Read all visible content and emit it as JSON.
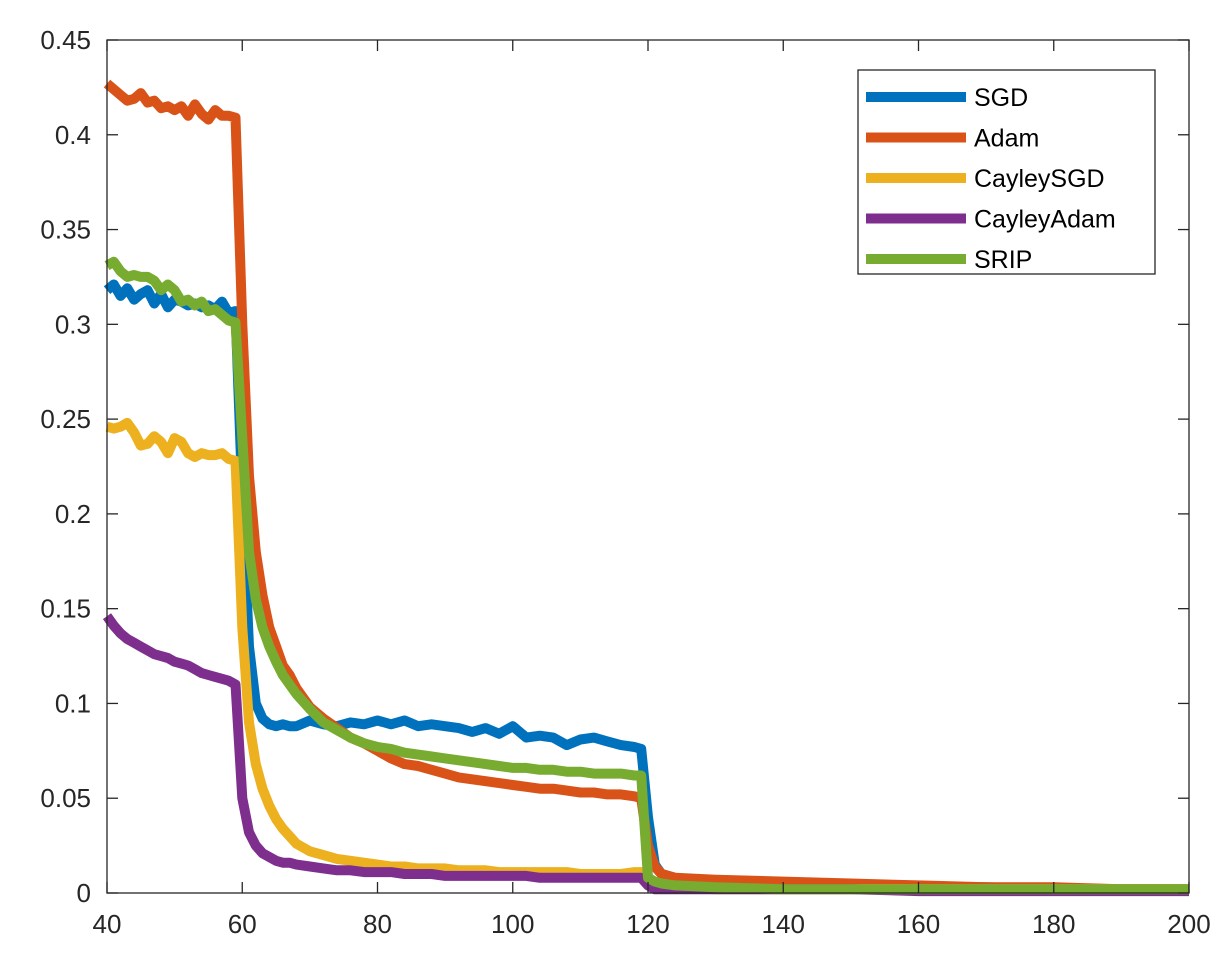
{
  "chart_data": {
    "type": "line",
    "title": "",
    "xlabel": "",
    "ylabel": "",
    "xlim": [
      40,
      200
    ],
    "ylim": [
      0,
      0.45
    ],
    "xticks": [
      40,
      60,
      80,
      100,
      120,
      140,
      160,
      180,
      200
    ],
    "xtick_labels": [
      "40",
      "60",
      "80",
      "100",
      "120",
      "140",
      "160",
      "180",
      "200"
    ],
    "yticks": [
      0,
      0.05,
      0.1,
      0.15,
      0.2,
      0.25,
      0.3,
      0.35,
      0.4,
      0.45
    ],
    "ytick_labels": [
      "0",
      "0.05",
      "0.1",
      "0.15",
      "0.2",
      "0.25",
      "0.3",
      "0.35",
      "0.4",
      "0.45"
    ],
    "grid": false,
    "legend_position": "top-right",
    "series": [
      {
        "name": "SGD",
        "color": "#0072BD",
        "x": [
          40,
          41,
          42,
          43,
          44,
          45,
          46,
          47,
          48,
          49,
          50,
          51,
          52,
          53,
          54,
          55,
          56,
          57,
          58,
          59,
          60,
          61,
          62,
          63,
          64,
          65,
          66,
          67,
          68,
          70,
          72,
          74,
          76,
          78,
          80,
          82,
          84,
          86,
          88,
          90,
          92,
          94,
          96,
          98,
          100,
          102,
          104,
          106,
          108,
          110,
          112,
          114,
          116,
          118,
          119,
          120,
          121,
          122,
          124,
          130,
          140,
          150,
          160,
          170,
          180,
          190,
          200
        ],
        "y": [
          0.318,
          0.321,
          0.315,
          0.319,
          0.313,
          0.316,
          0.318,
          0.311,
          0.316,
          0.309,
          0.313,
          0.312,
          0.31,
          0.311,
          0.309,
          0.31,
          0.308,
          0.312,
          0.306,
          0.307,
          0.21,
          0.13,
          0.1,
          0.092,
          0.089,
          0.088,
          0.089,
          0.088,
          0.088,
          0.091,
          0.089,
          0.088,
          0.09,
          0.089,
          0.091,
          0.089,
          0.091,
          0.088,
          0.089,
          0.088,
          0.087,
          0.085,
          0.087,
          0.084,
          0.088,
          0.082,
          0.083,
          0.082,
          0.078,
          0.081,
          0.082,
          0.08,
          0.078,
          0.077,
          0.076,
          0.04,
          0.015,
          0.01,
          0.008,
          0.006,
          0.005,
          0.004,
          0.003,
          0.003,
          0.002,
          0.002,
          0.002
        ]
      },
      {
        "name": "Adam",
        "color": "#D95319",
        "x": [
          40,
          41,
          42,
          43,
          44,
          45,
          46,
          47,
          48,
          49,
          50,
          51,
          52,
          53,
          54,
          55,
          56,
          57,
          58,
          59,
          60,
          61,
          62,
          63,
          64,
          65,
          66,
          67,
          68,
          70,
          72,
          74,
          76,
          78,
          80,
          82,
          84,
          86,
          88,
          90,
          92,
          94,
          96,
          98,
          100,
          102,
          104,
          106,
          108,
          110,
          112,
          114,
          116,
          118,
          119,
          120,
          121,
          122,
          124,
          130,
          140,
          150,
          160,
          170,
          180,
          190,
          200
        ],
        "y": [
          0.427,
          0.424,
          0.421,
          0.418,
          0.419,
          0.422,
          0.417,
          0.418,
          0.414,
          0.415,
          0.413,
          0.415,
          0.41,
          0.416,
          0.411,
          0.408,
          0.413,
          0.41,
          0.41,
          0.409,
          0.3,
          0.22,
          0.18,
          0.157,
          0.14,
          0.13,
          0.12,
          0.115,
          0.108,
          0.098,
          0.092,
          0.087,
          0.082,
          0.079,
          0.075,
          0.071,
          0.068,
          0.067,
          0.065,
          0.063,
          0.061,
          0.06,
          0.059,
          0.058,
          0.057,
          0.056,
          0.055,
          0.055,
          0.054,
          0.053,
          0.053,
          0.052,
          0.052,
          0.051,
          0.05,
          0.025,
          0.014,
          0.01,
          0.008,
          0.007,
          0.006,
          0.005,
          0.004,
          0.003,
          0.003,
          0.002,
          0.002
        ]
      },
      {
        "name": "CayleySGD",
        "color": "#EDB120",
        "x": [
          40,
          41,
          42,
          43,
          44,
          45,
          46,
          47,
          48,
          49,
          50,
          51,
          52,
          53,
          54,
          55,
          56,
          57,
          58,
          59,
          60,
          61,
          62,
          63,
          64,
          65,
          66,
          67,
          68,
          70,
          72,
          74,
          76,
          78,
          80,
          82,
          84,
          86,
          88,
          90,
          92,
          94,
          96,
          98,
          100,
          102,
          104,
          106,
          108,
          110,
          112,
          114,
          116,
          118,
          119,
          120,
          121,
          122,
          124,
          130,
          140,
          150,
          160,
          170,
          180,
          190,
          200
        ],
        "y": [
          0.246,
          0.245,
          0.246,
          0.248,
          0.243,
          0.236,
          0.237,
          0.241,
          0.238,
          0.232,
          0.24,
          0.238,
          0.232,
          0.23,
          0.232,
          0.231,
          0.231,
          0.232,
          0.229,
          0.228,
          0.14,
          0.09,
          0.068,
          0.055,
          0.046,
          0.039,
          0.034,
          0.03,
          0.026,
          0.022,
          0.02,
          0.018,
          0.017,
          0.016,
          0.015,
          0.014,
          0.014,
          0.013,
          0.013,
          0.013,
          0.012,
          0.012,
          0.012,
          0.011,
          0.011,
          0.011,
          0.011,
          0.011,
          0.011,
          0.01,
          0.01,
          0.01,
          0.01,
          0.011,
          0.011,
          0.006,
          0.004,
          0.003,
          0.003,
          0.002,
          0.002,
          0.002,
          0.002,
          0.002,
          0.002,
          0.002,
          0.002
        ]
      },
      {
        "name": "CayleyAdam",
        "color": "#7E2F8E",
        "x": [
          40,
          41,
          42,
          43,
          44,
          45,
          46,
          47,
          48,
          49,
          50,
          51,
          52,
          53,
          54,
          55,
          56,
          57,
          58,
          59,
          60,
          61,
          62,
          63,
          64,
          65,
          66,
          67,
          68,
          70,
          72,
          74,
          76,
          78,
          80,
          82,
          84,
          86,
          88,
          90,
          92,
          94,
          96,
          98,
          100,
          102,
          104,
          106,
          108,
          110,
          112,
          114,
          116,
          118,
          119,
          120,
          121,
          122,
          124,
          130,
          140,
          150,
          160,
          170,
          180,
          190,
          200
        ],
        "y": [
          0.146,
          0.141,
          0.137,
          0.134,
          0.132,
          0.13,
          0.128,
          0.126,
          0.125,
          0.124,
          0.122,
          0.121,
          0.12,
          0.118,
          0.116,
          0.115,
          0.114,
          0.113,
          0.112,
          0.11,
          0.05,
          0.032,
          0.025,
          0.021,
          0.019,
          0.017,
          0.016,
          0.016,
          0.015,
          0.014,
          0.013,
          0.012,
          0.012,
          0.011,
          0.011,
          0.011,
          0.01,
          0.01,
          0.01,
          0.009,
          0.009,
          0.009,
          0.009,
          0.009,
          0.009,
          0.009,
          0.008,
          0.008,
          0.008,
          0.008,
          0.008,
          0.008,
          0.008,
          0.008,
          0.008,
          0.004,
          0.002,
          0.002,
          0.002,
          0.002,
          0.002,
          0.002,
          0.001,
          0.001,
          0.001,
          0.001,
          0.001
        ]
      },
      {
        "name": "SRIP",
        "color": "#77AC30",
        "x": [
          40,
          41,
          42,
          43,
          44,
          45,
          46,
          47,
          48,
          49,
          50,
          51,
          52,
          53,
          54,
          55,
          56,
          57,
          58,
          59,
          60,
          61,
          62,
          63,
          64,
          65,
          66,
          67,
          68,
          70,
          72,
          74,
          76,
          78,
          80,
          82,
          84,
          86,
          88,
          90,
          92,
          94,
          96,
          98,
          100,
          102,
          104,
          106,
          108,
          110,
          112,
          114,
          116,
          118,
          119,
          120,
          121,
          122,
          124,
          130,
          140,
          150,
          160,
          170,
          180,
          190,
          200
        ],
        "y": [
          0.331,
          0.333,
          0.328,
          0.325,
          0.326,
          0.325,
          0.325,
          0.323,
          0.318,
          0.321,
          0.318,
          0.312,
          0.313,
          0.31,
          0.312,
          0.307,
          0.308,
          0.305,
          0.302,
          0.301,
          0.24,
          0.18,
          0.155,
          0.14,
          0.13,
          0.122,
          0.115,
          0.11,
          0.105,
          0.097,
          0.09,
          0.086,
          0.082,
          0.079,
          0.077,
          0.076,
          0.074,
          0.073,
          0.072,
          0.071,
          0.07,
          0.069,
          0.068,
          0.067,
          0.066,
          0.066,
          0.065,
          0.065,
          0.064,
          0.064,
          0.063,
          0.063,
          0.063,
          0.062,
          0.062,
          0.008,
          0.006,
          0.005,
          0.004,
          0.003,
          0.002,
          0.002,
          0.002,
          0.002,
          0.002,
          0.002,
          0.002
        ]
      }
    ]
  }
}
